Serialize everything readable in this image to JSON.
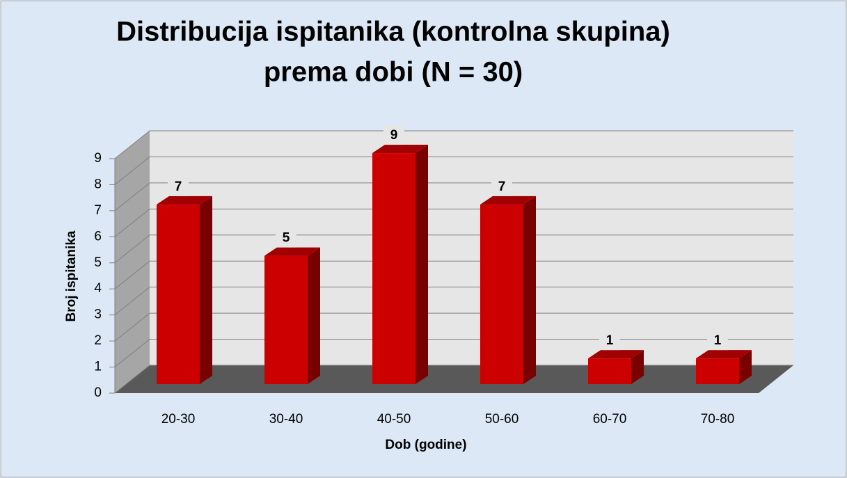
{
  "chart_data": {
    "type": "bar3d",
    "title": [
      "Distribucija ispitanika (kontrolna skupina)",
      "prema dobi (N = 30)"
    ],
    "xlabel": "Dob (godine)",
    "ylabel": "Broj ispitanika",
    "categories": [
      "20-30",
      "30-40",
      "40-50",
      "50-60",
      "60-70",
      "70-80"
    ],
    "values": [
      7,
      5,
      9,
      7,
      1,
      1
    ],
    "color": "#cc0000",
    "ylim": [
      0,
      9
    ],
    "yticks": [
      0,
      1,
      2,
      3,
      4,
      5,
      6,
      7,
      8,
      9
    ],
    "grid": true,
    "data_labels": true
  }
}
